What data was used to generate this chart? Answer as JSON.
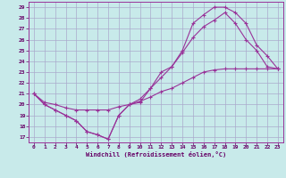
{
  "xlabel": "Windchill (Refroidissement éolien,°C)",
  "bg_color": "#c8eaea",
  "grid_color": "#aaaacc",
  "line_color": "#993399",
  "xlim_min": -0.5,
  "xlim_max": 23.5,
  "ylim_min": 16.5,
  "ylim_max": 29.5,
  "yticks": [
    17,
    18,
    19,
    20,
    21,
    22,
    23,
    24,
    25,
    26,
    27,
    28,
    29
  ],
  "xticks": [
    0,
    1,
    2,
    3,
    4,
    5,
    6,
    7,
    8,
    9,
    10,
    11,
    12,
    13,
    14,
    15,
    16,
    17,
    18,
    19,
    20,
    21,
    22,
    23
  ],
  "line1_x": [
    0,
    1,
    2,
    3,
    4,
    5,
    6,
    7,
    8,
    9,
    10,
    11,
    12,
    13,
    14,
    15,
    16,
    17,
    18,
    19,
    20,
    21,
    22,
    23
  ],
  "line1_y": [
    21.0,
    20.0,
    19.5,
    19.0,
    18.5,
    17.5,
    17.2,
    16.8,
    19.0,
    20.0,
    20.2,
    21.5,
    22.5,
    23.5,
    25.0,
    27.5,
    28.3,
    29.0,
    29.0,
    28.5,
    27.5,
    25.5,
    24.5,
    23.3
  ],
  "line2_x": [
    0,
    1,
    2,
    3,
    4,
    5,
    6,
    7,
    8,
    9,
    10,
    11,
    12,
    13,
    14,
    15,
    16,
    17,
    18,
    19,
    20,
    21,
    22,
    23
  ],
  "line2_y": [
    21.0,
    20.0,
    19.5,
    19.0,
    18.5,
    17.5,
    17.2,
    16.8,
    19.0,
    20.0,
    20.5,
    21.5,
    23.0,
    23.5,
    24.8,
    26.2,
    27.2,
    27.8,
    28.5,
    27.5,
    26.0,
    25.0,
    23.5,
    23.3
  ],
  "line3_x": [
    0,
    1,
    2,
    3,
    4,
    5,
    6,
    7,
    8,
    9,
    10,
    11,
    12,
    13,
    14,
    15,
    16,
    17,
    18,
    19,
    20,
    21,
    22,
    23
  ],
  "line3_y": [
    21.0,
    20.2,
    20.0,
    19.7,
    19.5,
    19.5,
    19.5,
    19.5,
    19.8,
    20.0,
    20.3,
    20.7,
    21.2,
    21.5,
    22.0,
    22.5,
    23.0,
    23.2,
    23.3,
    23.3,
    23.3,
    23.3,
    23.3,
    23.3
  ]
}
